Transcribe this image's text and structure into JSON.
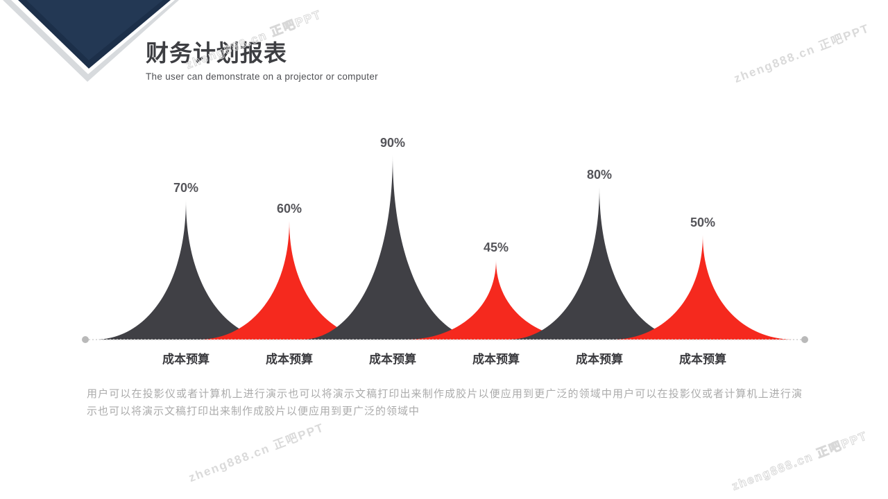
{
  "header": {
    "title": "财务计划报表",
    "subtitle": "The user can demonstrate on a projector or computer"
  },
  "chart_data": {
    "type": "area",
    "title": "",
    "categories": [
      "成本预算",
      "成本预算",
      "成本预算",
      "成本预算",
      "成本预算",
      "成本预算"
    ],
    "values": [
      70,
      60,
      90,
      45,
      80,
      50
    ],
    "unit": "%",
    "value_labels": [
      "70%",
      "60%",
      "90%",
      "45%",
      "80%",
      "50%"
    ],
    "series_colors": [
      "#404045",
      "#f5291e"
    ],
    "baseline_color": "#cfcfcf",
    "endpoint_dot_color": "#b9b9b9",
    "value_label_color": "#545459",
    "category_label_color": "#3b3b3f",
    "ylim": [
      0,
      100
    ],
    "grid": false,
    "legend": false
  },
  "body": {
    "paragraph": "用户可以在投影仪或者计算机上进行演示也可以将演示文稿打印出来制作成胶片以便应用到更广泛的领域中用户可以在投影仪或者计算机上进行演示也可以将演示文稿打印出来制作成胶片以便应用到更广泛的领域中"
  },
  "watermark": {
    "text": "zheng888.cn 正吧PPT"
  },
  "colors": {
    "navy": "#233854",
    "navy_edge": "#1c2f49",
    "shadow": "#d7dadd",
    "dark_series": "#404045",
    "red_series": "#f5291e"
  }
}
